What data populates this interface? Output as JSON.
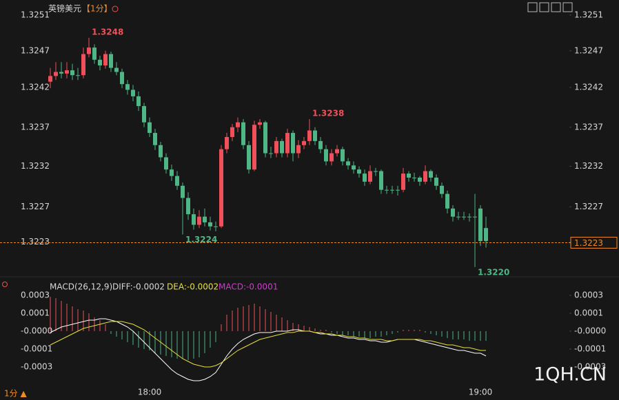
{
  "header": {
    "title": "英镑美元",
    "period": "【1分】",
    "footer_period": "1分 ▲",
    "watermark": "1QH.CN"
  },
  "chart_data": [
    {
      "type": "candlestick",
      "up_color": "#f0505a",
      "down_color": "#4fb686",
      "current_price": 1.3223,
      "current_color": "#f08c28",
      "annotations": [
        "1.3248",
        "1.3238",
        "1.3224",
        "1.3220"
      ],
      "ylim": [
        1.32194,
        1.3252
      ],
      "yticks": [
        {
          "value": 1.3251,
          "label": "1.3251"
        },
        {
          "value": 1.32466,
          "label": "1.3247"
        },
        {
          "value": 1.32421,
          "label": "1.3242"
        },
        {
          "value": 1.32372,
          "label": "1.3237"
        },
        {
          "value": 1.32324,
          "label": "1.3232"
        },
        {
          "value": 1.32274,
          "label": "1.3227"
        },
        {
          "value": 1.32231,
          "label": "1.3223"
        }
      ],
      "categories": [
        null,
        null,
        null,
        null,
        null,
        null,
        null,
        null,
        null,
        null,
        null,
        null,
        null,
        null,
        null,
        null,
        null,
        null,
        "18:00",
        null,
        null,
        null,
        null,
        null,
        null,
        null,
        null,
        null,
        null,
        null,
        null,
        null,
        null,
        null,
        null,
        null,
        null,
        null,
        null,
        null,
        null,
        null,
        null,
        null,
        null,
        null,
        null,
        null,
        null,
        null,
        null,
        null,
        null,
        null,
        null,
        null,
        null,
        null,
        null,
        null,
        null,
        null,
        null,
        null,
        null,
        null,
        null,
        null,
        null,
        null,
        null,
        null,
        null,
        null,
        null,
        null,
        null,
        null,
        "19:00",
        null
      ],
      "ohlc": [
        [
          1.32428,
          1.32445,
          1.3242,
          1.32435
        ],
        [
          1.32435,
          1.32452,
          1.3243,
          1.3244
        ],
        [
          1.3244,
          1.32452,
          1.32432,
          1.32438
        ],
        [
          1.32438,
          1.32452,
          1.32432,
          1.32442
        ],
        [
          1.32442,
          1.3245,
          1.3243,
          1.32436
        ],
        [
          1.32436,
          1.32445,
          1.3243,
          1.32436
        ],
        [
          1.32436,
          1.3247,
          1.32432,
          1.32462
        ],
        [
          1.32462,
          1.32482,
          1.32458,
          1.3247
        ],
        [
          1.3247,
          1.32474,
          1.3245,
          1.32455
        ],
        [
          1.32455,
          1.3246,
          1.32442,
          1.32448
        ],
        [
          1.32448,
          1.32466,
          1.32444,
          1.32462
        ],
        [
          1.32462,
          1.32465,
          1.3244,
          1.32445
        ],
        [
          1.32445,
          1.32452,
          1.32436,
          1.3244
        ],
        [
          1.3244,
          1.32444,
          1.3242,
          1.32425
        ],
        [
          1.32425,
          1.3243,
          1.32412,
          1.32418
        ],
        [
          1.32418,
          1.32424,
          1.32404,
          1.3241
        ],
        [
          1.3241,
          1.32416,
          1.32392,
          1.32398
        ],
        [
          1.32398,
          1.32402,
          1.32372,
          1.32378
        ],
        [
          1.32378,
          1.32384,
          1.3236,
          1.32365
        ],
        [
          1.32365,
          1.3237,
          1.32344,
          1.3235
        ],
        [
          1.3235,
          1.32354,
          1.3233,
          1.32335
        ],
        [
          1.32335,
          1.3234,
          1.32315,
          1.3232
        ],
        [
          1.3232,
          1.32326,
          1.32306,
          1.32312
        ],
        [
          1.32312,
          1.32318,
          1.32295,
          1.323
        ],
        [
          1.323,
          1.32304,
          1.3224,
          1.32285
        ],
        [
          1.32285,
          1.32292,
          1.32258,
          1.32265
        ],
        [
          1.32265,
          1.32272,
          1.32246,
          1.32252
        ],
        [
          1.32252,
          1.3227,
          1.32248,
          1.32262
        ],
        [
          1.32262,
          1.32272,
          1.3225,
          1.32255
        ],
        [
          1.32255,
          1.32262,
          1.32245,
          1.3225
        ],
        [
          1.3225,
          1.32256,
          1.32244,
          1.3225
        ],
        [
          1.3225,
          1.3235,
          1.32248,
          1.32345
        ],
        [
          1.32345,
          1.32365,
          1.3234,
          1.3236
        ],
        [
          1.3236,
          1.32376,
          1.32355,
          1.32372
        ],
        [
          1.32372,
          1.32384,
          1.32366,
          1.32378
        ],
        [
          1.32378,
          1.32382,
          1.32345,
          1.3235
        ],
        [
          1.3235,
          1.32355,
          1.32315,
          1.3232
        ],
        [
          1.3232,
          1.3238,
          1.32318,
          1.32375
        ],
        [
          1.32375,
          1.32382,
          1.3237,
          1.32378
        ],
        [
          1.32378,
          1.3238,
          1.32335,
          1.3234
        ],
        [
          1.3234,
          1.32348,
          1.32334,
          1.3234
        ],
        [
          1.3234,
          1.3236,
          1.32335,
          1.32355
        ],
        [
          1.32355,
          1.32358,
          1.32335,
          1.3234
        ],
        [
          1.3234,
          1.3237,
          1.32335,
          1.32365
        ],
        [
          1.32365,
          1.32368,
          1.3233,
          1.3234
        ],
        [
          1.3234,
          1.32356,
          1.32334,
          1.3235
        ],
        [
          1.3235,
          1.3236,
          1.32345,
          1.32355
        ],
        [
          1.32355,
          1.32382,
          1.3235,
          1.32368
        ],
        [
          1.32368,
          1.32372,
          1.3235,
          1.32355
        ],
        [
          1.32355,
          1.3236,
          1.3234,
          1.32345
        ],
        [
          1.32345,
          1.3235,
          1.32325,
          1.3233
        ],
        [
          1.3233,
          1.32345,
          1.32325,
          1.3234
        ],
        [
          1.3234,
          1.3235,
          1.32336,
          1.32345
        ],
        [
          1.32345,
          1.32348,
          1.32325,
          1.3233
        ],
        [
          1.3233,
          1.32334,
          1.3232,
          1.32325
        ],
        [
          1.32325,
          1.3233,
          1.32315,
          1.3232
        ],
        [
          1.3232,
          1.32324,
          1.3231,
          1.32315
        ],
        [
          1.32315,
          1.3232,
          1.323,
          1.32305
        ],
        [
          1.32305,
          1.32325,
          1.32302,
          1.32318
        ],
        [
          1.32318,
          1.32322,
          1.32312,
          1.32318
        ],
        [
          1.32318,
          1.3232,
          1.3229,
          1.32295
        ],
        [
          1.32295,
          1.323,
          1.3229,
          1.32295
        ],
        [
          1.32295,
          1.323,
          1.3229,
          1.32295
        ],
        [
          1.32295,
          1.323,
          1.32288,
          1.32295
        ],
        [
          1.32295,
          1.32322,
          1.32292,
          1.32315
        ],
        [
          1.32315,
          1.32318,
          1.32305,
          1.3231
        ],
        [
          1.3231,
          1.32316,
          1.32305,
          1.3231
        ],
        [
          1.3231,
          1.32312,
          1.323,
          1.32305
        ],
        [
          1.32305,
          1.32325,
          1.32302,
          1.32318
        ],
        [
          1.32318,
          1.3232,
          1.32305,
          1.3231
        ],
        [
          1.3231,
          1.32314,
          1.32295,
          1.323
        ],
        [
          1.323,
          1.32304,
          1.32285,
          1.3229
        ],
        [
          1.3229,
          1.32294,
          1.32266,
          1.32272
        ],
        [
          1.32272,
          1.32276,
          1.32256,
          1.32262
        ],
        [
          1.32262,
          1.32268,
          1.32258,
          1.32262
        ],
        [
          1.32262,
          1.32268,
          1.32258,
          1.32262
        ],
        [
          1.32262,
          1.32266,
          1.32256,
          1.32262
        ],
        [
          1.32262,
          1.3229,
          1.322,
          1.32262
        ],
        [
          1.32272,
          1.32276,
          1.32226,
          1.32232
        ],
        [
          1.32248,
          1.32262,
          1.32224,
          1.32232
        ]
      ]
    },
    {
      "type": "macd",
      "title": "MACD(26,12,9)",
      "up_color": "#f0505a",
      "down_color": "#4fb686",
      "ylim": [
        -0.00042,
        0.000305
      ],
      "yticks": [
        {
          "value": 0.00026,
          "label": "0.0003"
        },
        {
          "value": 0.00013,
          "label": "0.0001"
        },
        {
          "value": 0,
          "label": "-0.0000"
        },
        {
          "value": -0.00013,
          "label": "-0.0001"
        },
        {
          "value": -0.00026,
          "label": "-0.0003"
        }
      ],
      "series": [
        {
          "name": "DIFF:-0.0002",
          "color": "#ffffff",
          "values": [
            -1e-05,
            1e-05,
            3e-05,
            4e-05,
            5e-05,
            6e-05,
            7e-05,
            8e-05,
            8e-05,
            9e-05,
            9e-05,
            8e-05,
            7e-05,
            5e-05,
            3e-05,
            0,
            -4e-05,
            -8e-05,
            -0.00012,
            -0.00016,
            -0.0002,
            -0.00024,
            -0.00028,
            -0.00031,
            -0.00033,
            -0.00035,
            -0.00036,
            -0.00036,
            -0.00035,
            -0.00033,
            -0.0003,
            -0.00024,
            -0.00018,
            -0.00013,
            -9e-05,
            -6e-05,
            -4e-05,
            -2e-05,
            -1e-05,
            -1e-05,
            -1e-05,
            0,
            0,
            0,
            1e-05,
            1e-05,
            0,
            0,
            -1e-05,
            -2e-05,
            -2e-05,
            -3e-05,
            -3e-05,
            -4e-05,
            -5e-05,
            -5e-05,
            -6e-05,
            -6e-05,
            -7e-05,
            -7e-05,
            -8e-05,
            -8e-05,
            -7e-05,
            -6e-05,
            -6e-05,
            -6e-05,
            -6e-05,
            -7e-05,
            -8e-05,
            -9e-05,
            -0.0001,
            -0.00011,
            -0.00012,
            -0.00013,
            -0.00014,
            -0.00014,
            -0.00015,
            -0.00016,
            -0.00016,
            -0.00018
          ]
        },
        {
          "name": "DEA:-0.0002",
          "color": "#e8e03c",
          "values": [
            -0.0001,
            -8e-05,
            -6e-05,
            -4e-05,
            -2e-05,
            0,
            2e-05,
            3e-05,
            4e-05,
            5e-05,
            6e-05,
            7e-05,
            7e-05,
            7e-05,
            6e-05,
            5e-05,
            3e-05,
            1e-05,
            -2e-05,
            -5e-05,
            -8e-05,
            -0.00011,
            -0.00014,
            -0.00017,
            -0.0002,
            -0.00022,
            -0.00024,
            -0.00025,
            -0.00026,
            -0.00026,
            -0.00025,
            -0.00023,
            -0.0002,
            -0.00017,
            -0.00014,
            -0.00012,
            -0.0001,
            -8e-05,
            -6e-05,
            -5e-05,
            -4e-05,
            -3e-05,
            -2e-05,
            -1e-05,
            -1e-05,
            0,
            0,
            0,
            -1e-05,
            -1e-05,
            -2e-05,
            -2e-05,
            -3e-05,
            -3e-05,
            -4e-05,
            -4e-05,
            -5e-05,
            -5e-05,
            -6e-05,
            -6e-05,
            -6e-05,
            -7e-05,
            -7e-05,
            -6e-05,
            -6e-05,
            -6e-05,
            -6e-05,
            -6e-05,
            -7e-05,
            -7e-05,
            -8e-05,
            -9e-05,
            -0.0001,
            -0.0001,
            -0.00011,
            -0.00012,
            -0.00012,
            -0.00013,
            -0.00014,
            -0.00014
          ]
        },
        {
          "name": "MACD:-0.0001",
          "color": "#d03ad0",
          "values": [
            0.00025,
            0.00024,
            0.00022,
            0.0002,
            0.00018,
            0.00016,
            0.00015,
            0.00013,
            0.0001,
            8e-05,
            5e-05,
            -2e-05,
            -4e-05,
            -6e-05,
            -8e-05,
            -0.0001,
            -0.00012,
            -0.00013,
            -0.00014,
            -0.00016,
            -0.00017,
            -0.00018,
            -0.00019,
            -0.0002,
            -0.0002,
            -0.00021,
            -0.0002,
            -0.00019,
            -0.00016,
            -0.00012,
            -8e-05,
            5e-05,
            0.00012,
            0.00015,
            0.00017,
            0.00018,
            0.00019,
            0.0002,
            0.00018,
            0.00016,
            0.00014,
            0.00012,
            0.0001,
            8e-05,
            6e-05,
            5e-05,
            4e-05,
            3e-05,
            2e-05,
            1e-05,
            1e-05,
            -1e-05,
            -2e-05,
            -3e-05,
            -3e-05,
            -4e-05,
            -4e-05,
            -5e-05,
            -5e-05,
            -4e-05,
            -4e-05,
            -3e-05,
            -2e-05,
            -1e-05,
            1e-05,
            1e-05,
            1e-05,
            1e-05,
            -1e-05,
            -2e-05,
            -3e-05,
            -4e-05,
            -5e-05,
            -6e-05,
            -6e-05,
            -6e-05,
            -7e-05,
            -7e-05,
            -7e-05,
            -7e-05
          ]
        }
      ]
    }
  ]
}
